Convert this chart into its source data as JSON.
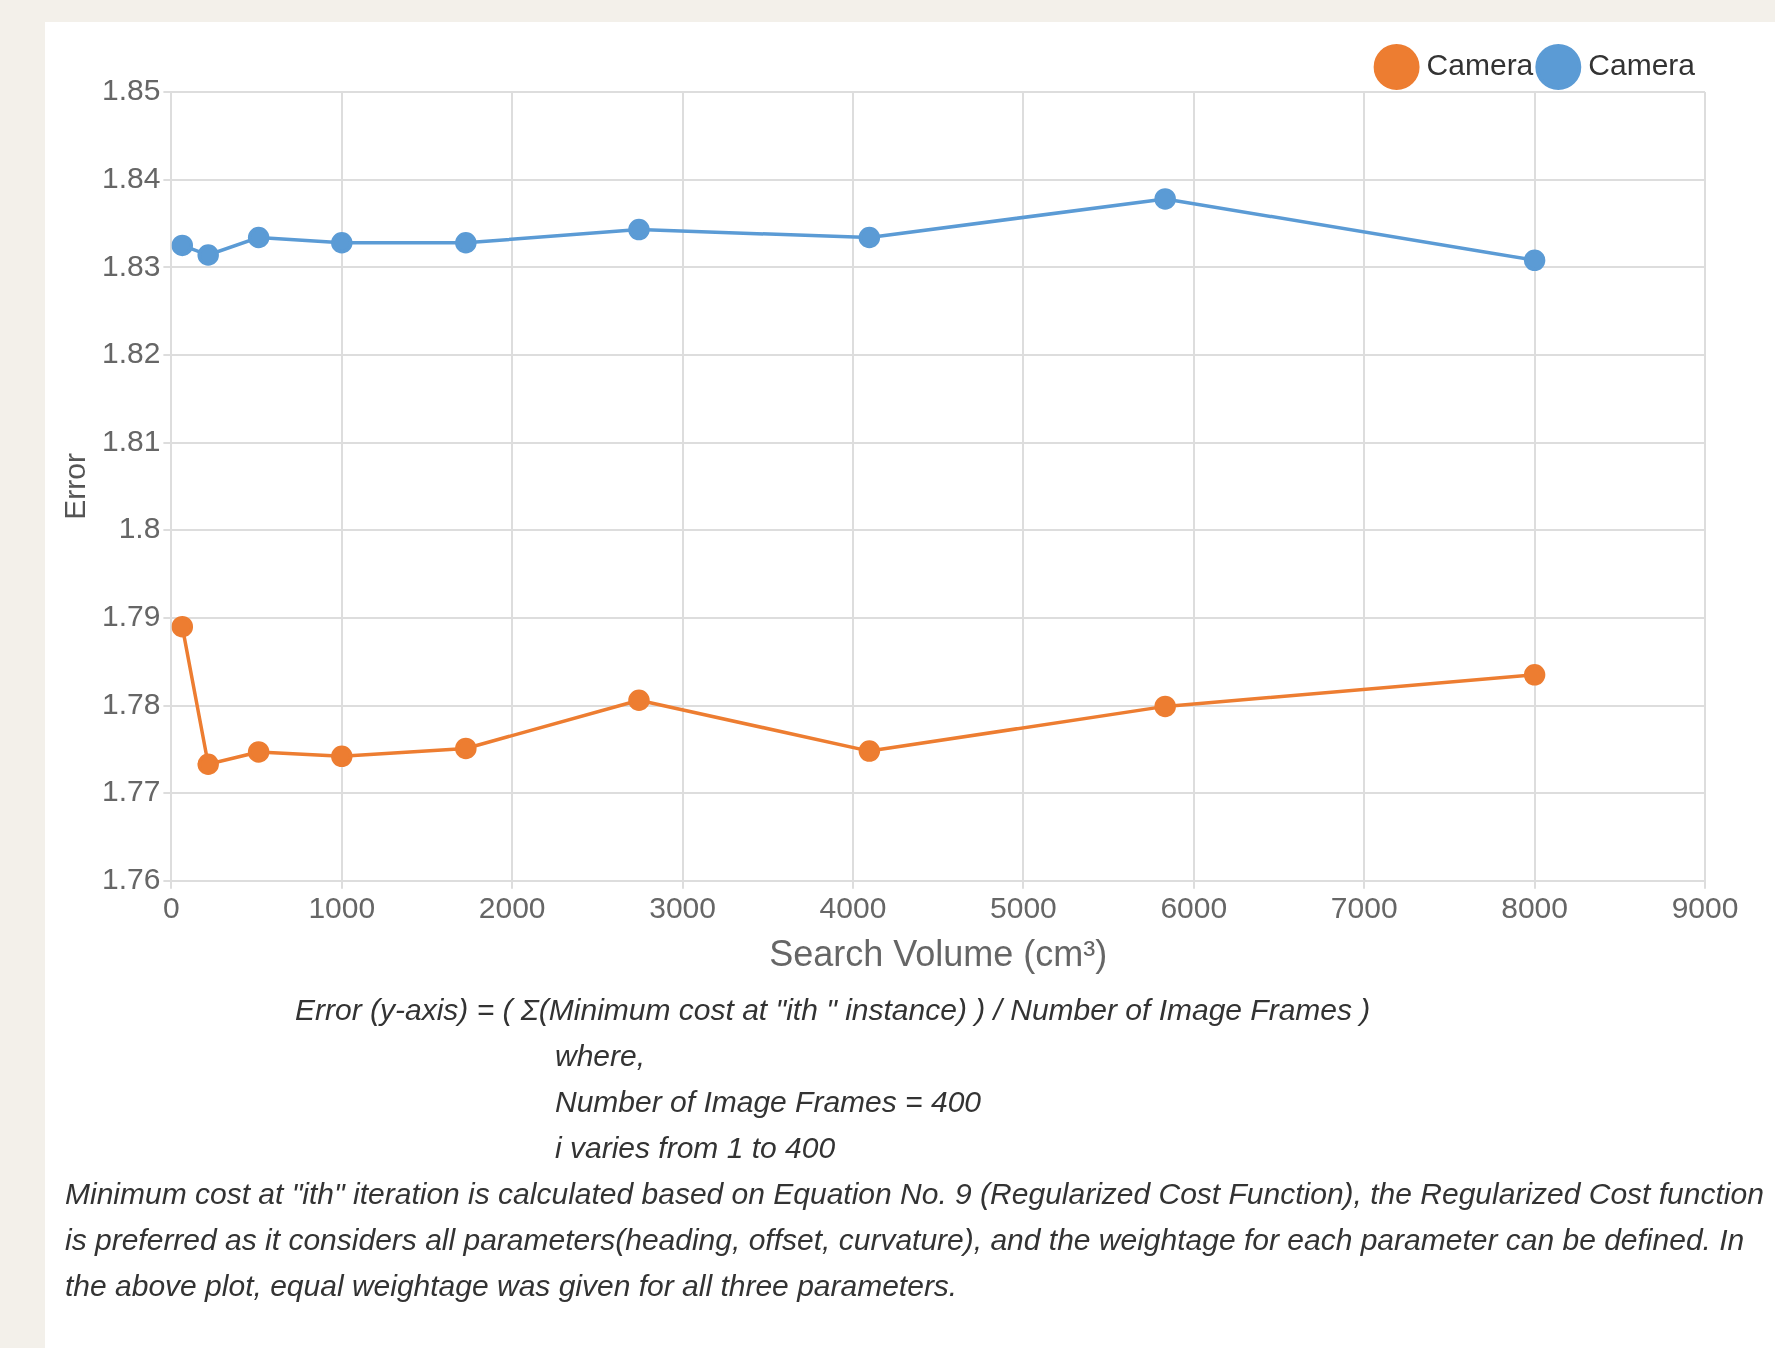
{
  "chart_data": {
    "type": "line",
    "xlabel": "Search Volume (cm³)",
    "ylabel": "Error",
    "x": [
      64,
      216,
      512,
      1000,
      1728,
      2744,
      4096,
      5832,
      8000
    ],
    "series": [
      {
        "name": "Camera",
        "color": "#ed7d31",
        "values": [
          1.789,
          1.7733,
          1.7747,
          1.7742,
          1.7751,
          1.7806,
          1.7748,
          1.7799,
          1.7835
        ]
      },
      {
        "name": "Camera",
        "color": "#5b9bd5",
        "values": [
          1.8325,
          1.8314,
          1.8334,
          1.8328,
          1.8328,
          1.8343,
          1.8334,
          1.8378,
          1.8308
        ]
      }
    ],
    "xlim": [
      0,
      9000
    ],
    "xticks": [
      0,
      1000,
      2000,
      3000,
      4000,
      5000,
      6000,
      7000,
      8000,
      9000
    ],
    "ylim": [
      1.76,
      1.85
    ],
    "yticks": [
      {
        "value": 1.76,
        "label": "1.76"
      },
      {
        "value": 1.77,
        "label": "1.77"
      },
      {
        "value": 1.78,
        "label": "1.78"
      },
      {
        "value": 1.79,
        "label": "1.79"
      },
      {
        "value": 1.8,
        "label": "1.8"
      },
      {
        "value": 1.81,
        "label": "1.81"
      },
      {
        "value": 1.82,
        "label": "1.82"
      },
      {
        "value": 1.83,
        "label": "1.83"
      },
      {
        "value": 1.84,
        "label": "1.84"
      },
      {
        "value": 1.85,
        "label": "1.85"
      }
    ],
    "grid": true,
    "legend": "top right",
    "marker": "circle",
    "line_style": "solid",
    "annotations": [
      "Error (y-axis) = ( Σ(Minimum cost at \"ith \" instance) ) / Number of Image Frames )",
      "where,",
      "Number of Image Frames = 400",
      "i varies from 1 to 400",
      "Minimum cost at \"ith\" iteration is calculated based on Equation No. 9 (Regularized Cost Function), the Regularized Cost function is preferred as it considers all parameters(heading, offset, curvature), and the weightage for each parameter can be defined. In the above plot, equal weightage was given for all three parameters."
    ]
  }
}
